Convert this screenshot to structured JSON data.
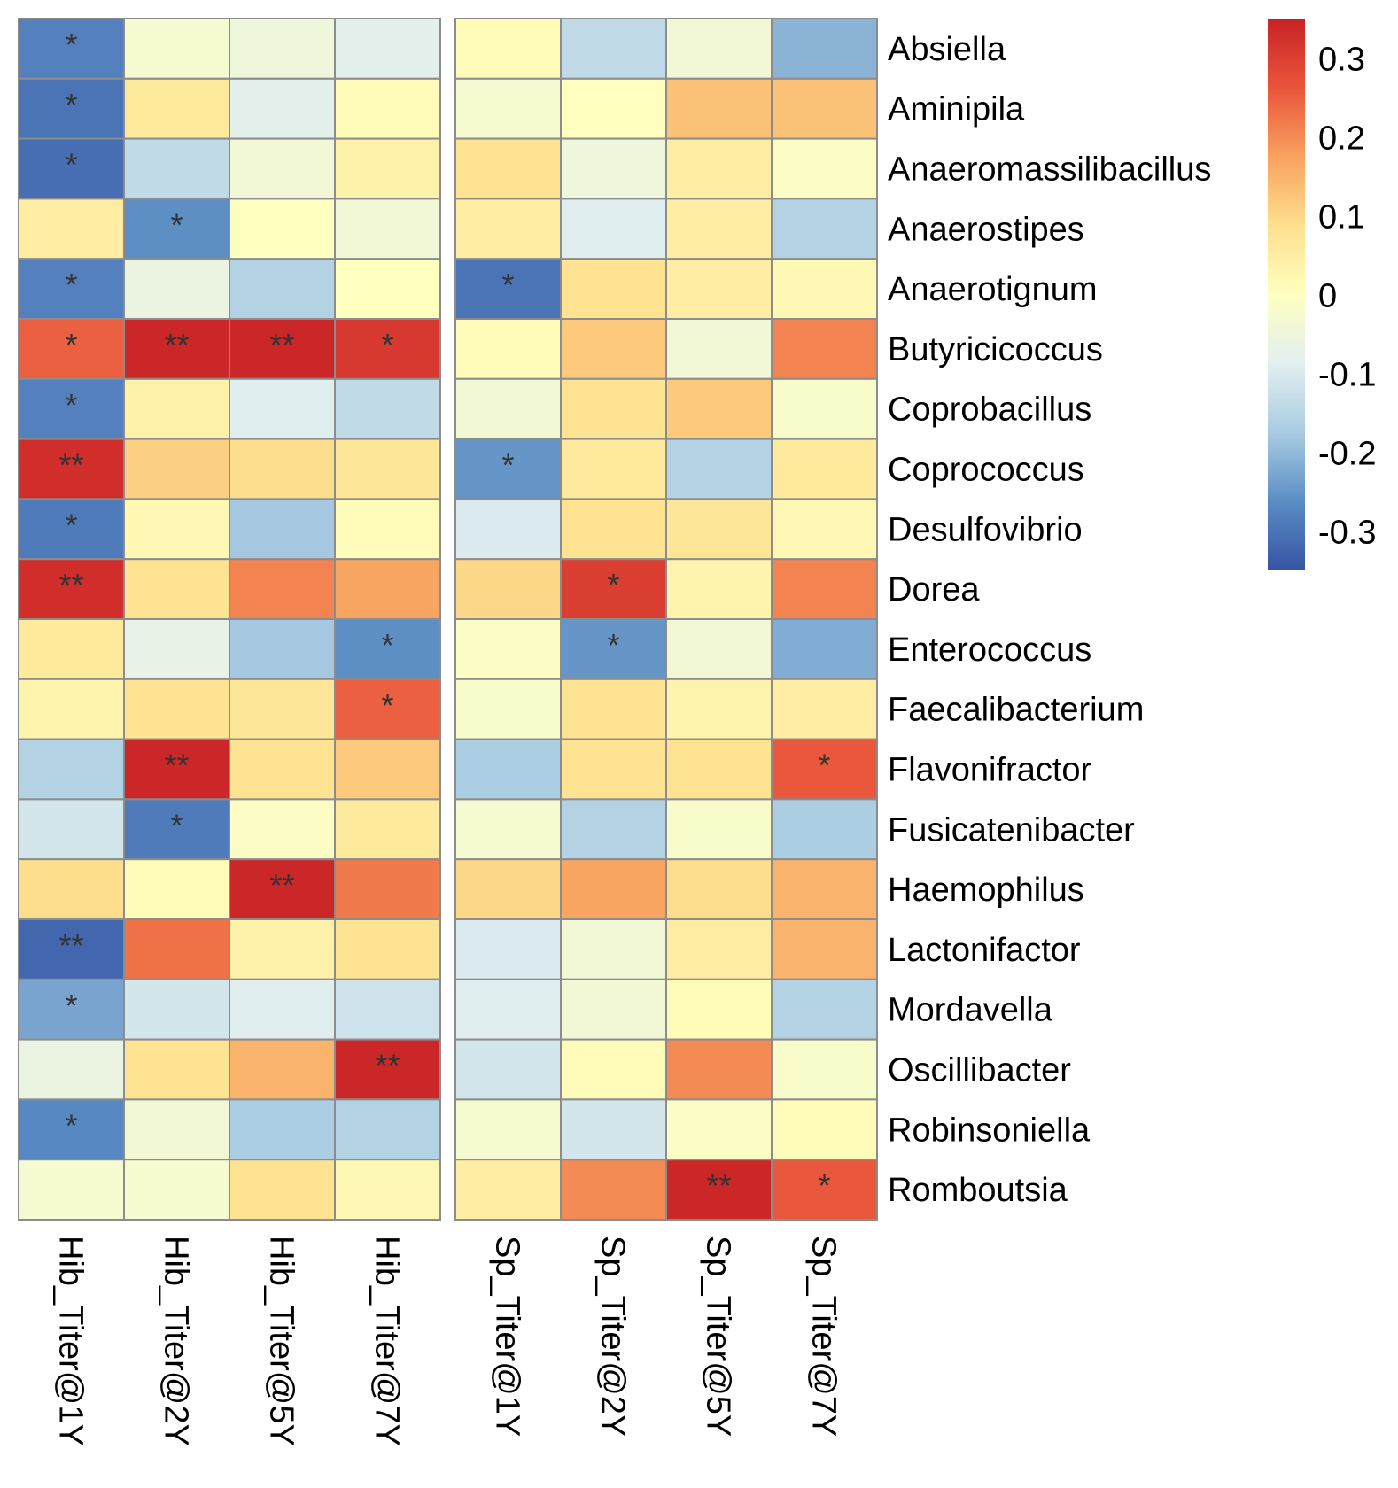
{
  "chart_data": {
    "type": "heatmap",
    "title": "",
    "xlabel": "",
    "ylabel": "",
    "rows": [
      "Absiella",
      "Aminipila",
      "Anaeromassilibacillus",
      "Anaerostipes",
      "Anaerotignum",
      "Butyricicoccus",
      "Coprobacillus",
      "Coprococcus",
      "Desulfovibrio",
      "Dorea",
      "Enterococcus",
      "Faecalibacterium",
      "Flavonifractor",
      "Fusicatenibacter",
      "Haemophilus",
      "Lactonifactor",
      "Mordavella",
      "Oscillibacter",
      "Robinsoniella",
      "Romboutsia"
    ],
    "column_groups": [
      [
        "Hib_Titer@1Y",
        "Hib_Titer@2Y",
        "Hib_Titer@5Y",
        "Hib_Titer@7Y"
      ],
      [
        "Sp_Titer@1Y",
        "Sp_Titer@2Y",
        "Sp_Titer@5Y",
        "Sp_Titer@7Y"
      ]
    ],
    "values": [
      [
        -0.28,
        -0.03,
        -0.05,
        -0.08,
        0.01,
        -0.14,
        -0.04,
        -0.21
      ],
      [
        -0.3,
        0.06,
        -0.08,
        0.01,
        -0.03,
        0.0,
        0.13,
        0.13
      ],
      [
        -0.31,
        -0.14,
        -0.04,
        0.04,
        0.08,
        -0.05,
        0.05,
        -0.01
      ],
      [
        0.05,
        -0.26,
        0.0,
        -0.04,
        0.05,
        -0.09,
        0.05,
        -0.16
      ],
      [
        -0.28,
        -0.06,
        -0.16,
        0.0,
        -0.3,
        0.08,
        0.05,
        0.02
      ],
      [
        0.25,
        0.34,
        0.34,
        0.31,
        0.01,
        0.12,
        -0.04,
        0.21
      ],
      [
        -0.28,
        0.04,
        -0.09,
        -0.14,
        -0.04,
        0.08,
        0.12,
        -0.02
      ],
      [
        0.33,
        0.11,
        0.09,
        0.07,
        -0.25,
        0.06,
        -0.16,
        0.06
      ],
      [
        -0.29,
        0.02,
        -0.18,
        0.01,
        -0.1,
        0.08,
        0.07,
        0.02
      ],
      [
        0.33,
        0.08,
        0.21,
        0.17,
        0.1,
        0.3,
        0.03,
        0.21
      ],
      [
        0.06,
        -0.07,
        -0.18,
        -0.26,
        -0.01,
        -0.25,
        -0.04,
        -0.22
      ],
      [
        0.03,
        0.08,
        0.07,
        0.25,
        -0.02,
        0.08,
        0.03,
        0.05
      ],
      [
        -0.16,
        0.34,
        0.08,
        0.12,
        -0.17,
        0.08,
        0.08,
        0.26
      ],
      [
        -0.11,
        -0.29,
        -0.01,
        0.06,
        -0.03,
        -0.16,
        -0.02,
        -0.17
      ],
      [
        0.09,
        0.01,
        0.34,
        0.22,
        0.1,
        0.17,
        0.09,
        0.15
      ],
      [
        -0.32,
        0.23,
        0.04,
        0.08,
        -0.1,
        -0.04,
        0.05,
        0.15
      ],
      [
        -0.23,
        -0.11,
        -0.09,
        -0.12,
        -0.09,
        -0.04,
        0.01,
        -0.16
      ],
      [
        -0.06,
        0.08,
        0.15,
        0.34,
        -0.11,
        0.01,
        0.2,
        -0.02
      ],
      [
        -0.27,
        -0.04,
        -0.17,
        -0.16,
        -0.03,
        -0.11,
        -0.01,
        0.01
      ],
      [
        -0.03,
        -0.03,
        0.08,
        0.02,
        0.05,
        0.2,
        0.34,
        0.26
      ]
    ],
    "significance": [
      [
        "*",
        "",
        "",
        "",
        "",
        "",
        "",
        ""
      ],
      [
        "*",
        "",
        "",
        "",
        "",
        "",
        "",
        ""
      ],
      [
        "*",
        "",
        "",
        "",
        "",
        "",
        "",
        ""
      ],
      [
        "",
        "*",
        "",
        "",
        "",
        "",
        "",
        ""
      ],
      [
        "*",
        "",
        "",
        "",
        "*",
        "",
        "",
        ""
      ],
      [
        "*",
        "**",
        "**",
        "*",
        "",
        "",
        "",
        ""
      ],
      [
        "*",
        "",
        "",
        "",
        "",
        "",
        "",
        ""
      ],
      [
        "**",
        "",
        "",
        "",
        "*",
        "",
        "",
        ""
      ],
      [
        "*",
        "",
        "",
        "",
        "",
        "",
        "",
        ""
      ],
      [
        "**",
        "",
        "",
        "",
        "",
        "*",
        "",
        ""
      ],
      [
        "",
        "",
        "",
        "*",
        "",
        "*",
        "",
        ""
      ],
      [
        "",
        "",
        "",
        "*",
        "",
        "",
        "",
        ""
      ],
      [
        "",
        "**",
        "",
        "",
        "",
        "",
        "",
        "*"
      ],
      [
        "",
        "*",
        "",
        "",
        "",
        "",
        "",
        ""
      ],
      [
        "",
        "",
        "**",
        "",
        "",
        "",
        "",
        ""
      ],
      [
        "**",
        "",
        "",
        "",
        "",
        "",
        "",
        ""
      ],
      [
        "*",
        "",
        "",
        "",
        "",
        "",
        "",
        ""
      ],
      [
        "",
        "",
        "",
        "**",
        "",
        "",
        "",
        ""
      ],
      [
        "*",
        "",
        "",
        "",
        "",
        "",
        "",
        ""
      ],
      [
        "",
        "",
        "",
        "",
        "",
        "",
        "**",
        "*"
      ]
    ],
    "color_scale": {
      "min": -0.35,
      "max": 0.35,
      "stops": [
        "#3653A3",
        "#5B8DC4",
        "#A9CCE2",
        "#E2EFF0",
        "#FFFFBF",
        "#FDE08E",
        "#F9A15F",
        "#E9553B",
        "#C82126"
      ],
      "ticks": [
        0.3,
        0.2,
        0.1,
        0,
        -0.1,
        -0.2,
        -0.3
      ],
      "tick_labels": [
        "0.3",
        "0.2",
        "0.1",
        "0",
        "-0.1",
        "-0.2",
        "-0.3"
      ]
    },
    "legend_placement": "top-right",
    "grid": true
  }
}
